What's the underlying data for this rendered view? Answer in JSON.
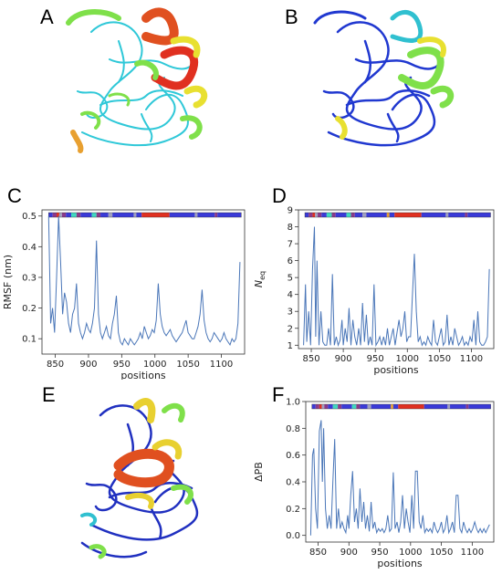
{
  "panels": {
    "A": "A",
    "B": "B",
    "C": "C",
    "D": "D",
    "E": "E",
    "F": "F"
  },
  "structure_panels": [
    {
      "id": "A",
      "description_colors": [
        "#2fd0d8",
        "#7fe04a",
        "#e8e030",
        "#e05020"
      ]
    },
    {
      "id": "B",
      "description_colors": [
        "#2040d0",
        "#30d0d0",
        "#7fe04a",
        "#e8e030"
      ]
    },
    {
      "id": "E",
      "description_colors": [
        "#2030c0",
        "#30c0d0",
        "#7fe04a",
        "#e8d030",
        "#e05020"
      ]
    }
  ],
  "colors": {
    "line": "#4a76b8",
    "bar_blue": "#3a3ad8",
    "bar_red": "#e03020",
    "bar_cyan": "#40d8c0",
    "bar_purple": "#8a3a8a",
    "bar_orange": "#e8a030",
    "bar_gray": "#a0a0c0"
  },
  "chart_data": [
    {
      "id": "C",
      "type": "line",
      "xlabel": "positions",
      "ylabel": "RMSF (nm)",
      "xlim": [
        830,
        1135
      ],
      "ylim": [
        0.05,
        0.52
      ],
      "xticks": [
        850,
        900,
        950,
        1000,
        1050,
        1100
      ],
      "yticks": [
        0.1,
        0.2,
        0.3,
        0.4,
        0.5
      ],
      "ytick_labels": [
        "0.1",
        "0.2",
        "0.3",
        "0.4",
        "0.5"
      ],
      "x": [
        840,
        843,
        846,
        849,
        852,
        855,
        858,
        861,
        864,
        867,
        870,
        873,
        876,
        879,
        882,
        885,
        888,
        891,
        894,
        897,
        900,
        903,
        906,
        909,
        912,
        915,
        918,
        921,
        924,
        927,
        930,
        933,
        936,
        939,
        942,
        945,
        948,
        951,
        954,
        957,
        960,
        963,
        966,
        969,
        972,
        975,
        978,
        981,
        984,
        987,
        990,
        993,
        996,
        999,
        1002,
        1005,
        1008,
        1011,
        1014,
        1017,
        1020,
        1023,
        1026,
        1029,
        1032,
        1035,
        1038,
        1041,
        1044,
        1047,
        1050,
        1053,
        1056,
        1059,
        1062,
        1065,
        1068,
        1071,
        1074,
        1077,
        1080,
        1083,
        1086,
        1089,
        1092,
        1095,
        1098,
        1101,
        1104,
        1107,
        1110,
        1113,
        1116,
        1119,
        1122,
        1125,
        1128
      ],
      "y": [
        0.5,
        0.15,
        0.2,
        0.12,
        0.3,
        0.5,
        0.35,
        0.18,
        0.25,
        0.22,
        0.15,
        0.12,
        0.18,
        0.2,
        0.28,
        0.15,
        0.12,
        0.1,
        0.12,
        0.15,
        0.13,
        0.12,
        0.15,
        0.2,
        0.42,
        0.18,
        0.12,
        0.1,
        0.12,
        0.14,
        0.11,
        0.1,
        0.15,
        0.18,
        0.24,
        0.12,
        0.09,
        0.08,
        0.1,
        0.09,
        0.08,
        0.1,
        0.09,
        0.08,
        0.09,
        0.1,
        0.12,
        0.1,
        0.14,
        0.12,
        0.1,
        0.11,
        0.13,
        0.12,
        0.16,
        0.28,
        0.18,
        0.14,
        0.12,
        0.11,
        0.12,
        0.13,
        0.11,
        0.1,
        0.09,
        0.1,
        0.11,
        0.12,
        0.14,
        0.16,
        0.12,
        0.11,
        0.1,
        0.1,
        0.12,
        0.14,
        0.18,
        0.26,
        0.16,
        0.12,
        0.1,
        0.09,
        0.1,
        0.12,
        0.11,
        0.1,
        0.09,
        0.1,
        0.12,
        0.1,
        0.09,
        0.08,
        0.1,
        0.09,
        0.1,
        0.15,
        0.35
      ],
      "bar_segments": [
        [
          "#3a3ad8",
          840,
          846
        ],
        [
          "#8a3a8a",
          846,
          852
        ],
        [
          "#e03020",
          852,
          856
        ],
        [
          "#a0a0c0",
          856,
          860
        ],
        [
          "#8a3a8a",
          860,
          866
        ],
        [
          "#3a3ad8",
          866,
          874
        ],
        [
          "#40d8c0",
          874,
          882
        ],
        [
          "#8a3a8a",
          882,
          888
        ],
        [
          "#3a3ad8",
          888,
          905
        ],
        [
          "#40d8c0",
          905,
          912
        ],
        [
          "#8a3a8a",
          912,
          918
        ],
        [
          "#3a3ad8",
          918,
          930
        ],
        [
          "#a0a0c0",
          930,
          936
        ],
        [
          "#3a3ad8",
          936,
          968
        ],
        [
          "#a0a0c0",
          968,
          972
        ],
        [
          "#3a3ad8",
          972,
          980
        ],
        [
          "#e03020",
          980,
          1022
        ],
        [
          "#3a3ad8",
          1022,
          1060
        ],
        [
          "#a0a0c0",
          1060,
          1064
        ],
        [
          "#3a3ad8",
          1064,
          1090
        ],
        [
          "#8a3a8a",
          1090,
          1094
        ],
        [
          "#3a3ad8",
          1094,
          1130
        ]
      ]
    },
    {
      "id": "D",
      "type": "line",
      "xlabel": "positions",
      "ylabel": "N_eq",
      "xlim": [
        830,
        1135
      ],
      "ylim": [
        0.8,
        9
      ],
      "xticks": [
        850,
        900,
        950,
        1000,
        1050,
        1100
      ],
      "yticks": [
        1,
        2,
        3,
        4,
        5,
        6,
        7,
        8,
        9
      ],
      "ytick_labels": [
        "1",
        "2",
        "3",
        "4",
        "5",
        "6",
        "7",
        "8",
        "9"
      ],
      "x": [
        838,
        841,
        843,
        846,
        849,
        852,
        855,
        857,
        859,
        862,
        865,
        868,
        871,
        874,
        877,
        880,
        883,
        886,
        889,
        892,
        895,
        898,
        900,
        903,
        906,
        909,
        912,
        915,
        918,
        921,
        924,
        927,
        930,
        933,
        936,
        939,
        942,
        945,
        948,
        951,
        954,
        957,
        960,
        963,
        966,
        969,
        972,
        975,
        978,
        981,
        984,
        987,
        990,
        993,
        996,
        999,
        1002,
        1005,
        1008,
        1011,
        1014,
        1017,
        1020,
        1023,
        1026,
        1029,
        1032,
        1035,
        1038,
        1041,
        1044,
        1047,
        1050,
        1053,
        1056,
        1059,
        1062,
        1065,
        1068,
        1071,
        1074,
        1077,
        1080,
        1083,
        1086,
        1089,
        1092,
        1095,
        1098,
        1101,
        1104,
        1107,
        1110,
        1113,
        1116,
        1119,
        1122,
        1125,
        1128
      ],
      "y": [
        1,
        4.6,
        1.2,
        3,
        1,
        5.5,
        8,
        1.5,
        6,
        1,
        3,
        1.2,
        1,
        1,
        2,
        1,
        5.2,
        1,
        1.5,
        1,
        1.3,
        2.5,
        1,
        2,
        1.2,
        3.2,
        1,
        2.5,
        1.5,
        1,
        2,
        1,
        3.5,
        1.2,
        2.8,
        1,
        1.5,
        1,
        4.6,
        1,
        1.2,
        1.5,
        1,
        1.5,
        1,
        2,
        1,
        1.5,
        2,
        1,
        1.8,
        2.5,
        1.5,
        2,
        3,
        1.2,
        1.5,
        1.5,
        4,
        6.4,
        3,
        1.2,
        1.5,
        1,
        1.2,
        1,
        1.5,
        1.2,
        1,
        2.5,
        1.2,
        1,
        1.5,
        2,
        1,
        1.2,
        2.8,
        1,
        1.5,
        1,
        2,
        1.5,
        1,
        1.2,
        1.5,
        1,
        1.2,
        1,
        1.5,
        1.2,
        2.5,
        1,
        3,
        1.2,
        1,
        1,
        1.2,
        1.5,
        5.5
      ],
      "bar_segments": [
        [
          "#3a3ad8",
          840,
          846
        ],
        [
          "#8a3a8a",
          846,
          852
        ],
        [
          "#e03020",
          852,
          856
        ],
        [
          "#a0a0c0",
          856,
          860
        ],
        [
          "#8a3a8a",
          860,
          866
        ],
        [
          "#3a3ad8",
          866,
          874
        ],
        [
          "#40d8c0",
          874,
          882
        ],
        [
          "#8a3a8a",
          882,
          888
        ],
        [
          "#3a3ad8",
          888,
          905
        ],
        [
          "#40d8c0",
          905,
          912
        ],
        [
          "#8a3a8a",
          912,
          918
        ],
        [
          "#3a3ad8",
          918,
          930
        ],
        [
          "#a0a0c0",
          930,
          936
        ],
        [
          "#3a3ad8",
          936,
          968
        ],
        [
          "#e8a030",
          968,
          972
        ],
        [
          "#3a3ad8",
          972,
          980
        ],
        [
          "#e03020",
          980,
          1022
        ],
        [
          "#3a3ad8",
          1022,
          1060
        ],
        [
          "#a0a0c0",
          1060,
          1064
        ],
        [
          "#3a3ad8",
          1064,
          1090
        ],
        [
          "#8a3a8a",
          1090,
          1094
        ],
        [
          "#3a3ad8",
          1094,
          1130
        ]
      ]
    },
    {
      "id": "F",
      "type": "line",
      "xlabel": "positions",
      "ylabel": "ΔPB",
      "xlim": [
        830,
        1135
      ],
      "ylim": [
        -0.05,
        1.0
      ],
      "xticks": [
        850,
        900,
        950,
        1000,
        1050,
        1100
      ],
      "yticks": [
        0.0,
        0.2,
        0.4,
        0.6,
        0.8,
        1.0
      ],
      "ytick_labels": [
        "0.0",
        "0.2",
        "0.4",
        "0.6",
        "0.8",
        "1.0"
      ],
      "x": [
        838,
        841,
        843,
        846,
        849,
        852,
        855,
        857,
        859,
        862,
        865,
        868,
        871,
        874,
        877,
        880,
        883,
        886,
        889,
        892,
        895,
        898,
        900,
        903,
        906,
        909,
        912,
        915,
        918,
        921,
        924,
        927,
        930,
        933,
        936,
        939,
        942,
        945,
        948,
        951,
        954,
        957,
        960,
        963,
        966,
        969,
        972,
        975,
        978,
        981,
        984,
        987,
        990,
        993,
        996,
        999,
        1002,
        1005,
        1008,
        1011,
        1014,
        1017,
        1020,
        1023,
        1026,
        1029,
        1032,
        1035,
        1038,
        1041,
        1044,
        1047,
        1050,
        1053,
        1056,
        1059,
        1062,
        1065,
        1068,
        1071,
        1074,
        1077,
        1080,
        1083,
        1086,
        1089,
        1092,
        1095,
        1098,
        1101,
        1104,
        1107,
        1110,
        1113,
        1116,
        1119,
        1122,
        1125,
        1128
      ],
      "y": [
        0,
        0.6,
        0.65,
        0.2,
        0.05,
        0.78,
        0.86,
        0.4,
        0.8,
        0.2,
        0.05,
        0.15,
        0.05,
        0.4,
        0.72,
        0.05,
        0.2,
        0.05,
        0.1,
        0.05,
        0.02,
        0.15,
        0.05,
        0.3,
        0.48,
        0.1,
        0.2,
        0.05,
        0.35,
        0.1,
        0.25,
        0.05,
        0.15,
        0.03,
        0.25,
        0.05,
        0.1,
        0.02,
        0.05,
        0.03,
        0.05,
        0.02,
        0.05,
        0.15,
        0.03,
        0.05,
        0.47,
        0.05,
        0.1,
        0.02,
        0.1,
        0.3,
        0.05,
        0.2,
        0.1,
        0.02,
        0.3,
        0.05,
        0.48,
        0.48,
        0.1,
        0.05,
        0.15,
        0.02,
        0.05,
        0.03,
        0.05,
        0.02,
        0.1,
        0.05,
        0.02,
        0.05,
        0.1,
        0.02,
        0.05,
        0.15,
        0.02,
        0.05,
        0.1,
        0.02,
        0.3,
        0.3,
        0.05,
        0.02,
        0.1,
        0.05,
        0.02,
        0.05,
        0.02,
        0.05,
        0.1,
        0.05,
        0.02,
        0.05,
        0.02,
        0.05,
        0.02,
        0.05,
        0.08
      ],
      "bar_segments": [
        [
          "#3a3ad8",
          840,
          846
        ],
        [
          "#8a3a8a",
          846,
          852
        ],
        [
          "#e03020",
          852,
          856
        ],
        [
          "#a0a0c0",
          856,
          860
        ],
        [
          "#8a3a8a",
          860,
          866
        ],
        [
          "#3a3ad8",
          866,
          874
        ],
        [
          "#40d8c0",
          874,
          882
        ],
        [
          "#8a3a8a",
          882,
          888
        ],
        [
          "#3a3ad8",
          888,
          905
        ],
        [
          "#40d8c0",
          905,
          912
        ],
        [
          "#8a3a8a",
          912,
          918
        ],
        [
          "#3a3ad8",
          918,
          930
        ],
        [
          "#a0a0c0",
          930,
          936
        ],
        [
          "#3a3ad8",
          936,
          968
        ],
        [
          "#e8a030",
          968,
          972
        ],
        [
          "#3a3ad8",
          972,
          980
        ],
        [
          "#e03020",
          980,
          1022
        ],
        [
          "#3a3ad8",
          1022,
          1060
        ],
        [
          "#a0a0c0",
          1060,
          1064
        ],
        [
          "#3a3ad8",
          1064,
          1090
        ],
        [
          "#8a3a8a",
          1090,
          1094
        ],
        [
          "#3a3ad8",
          1094,
          1130
        ]
      ]
    }
  ]
}
